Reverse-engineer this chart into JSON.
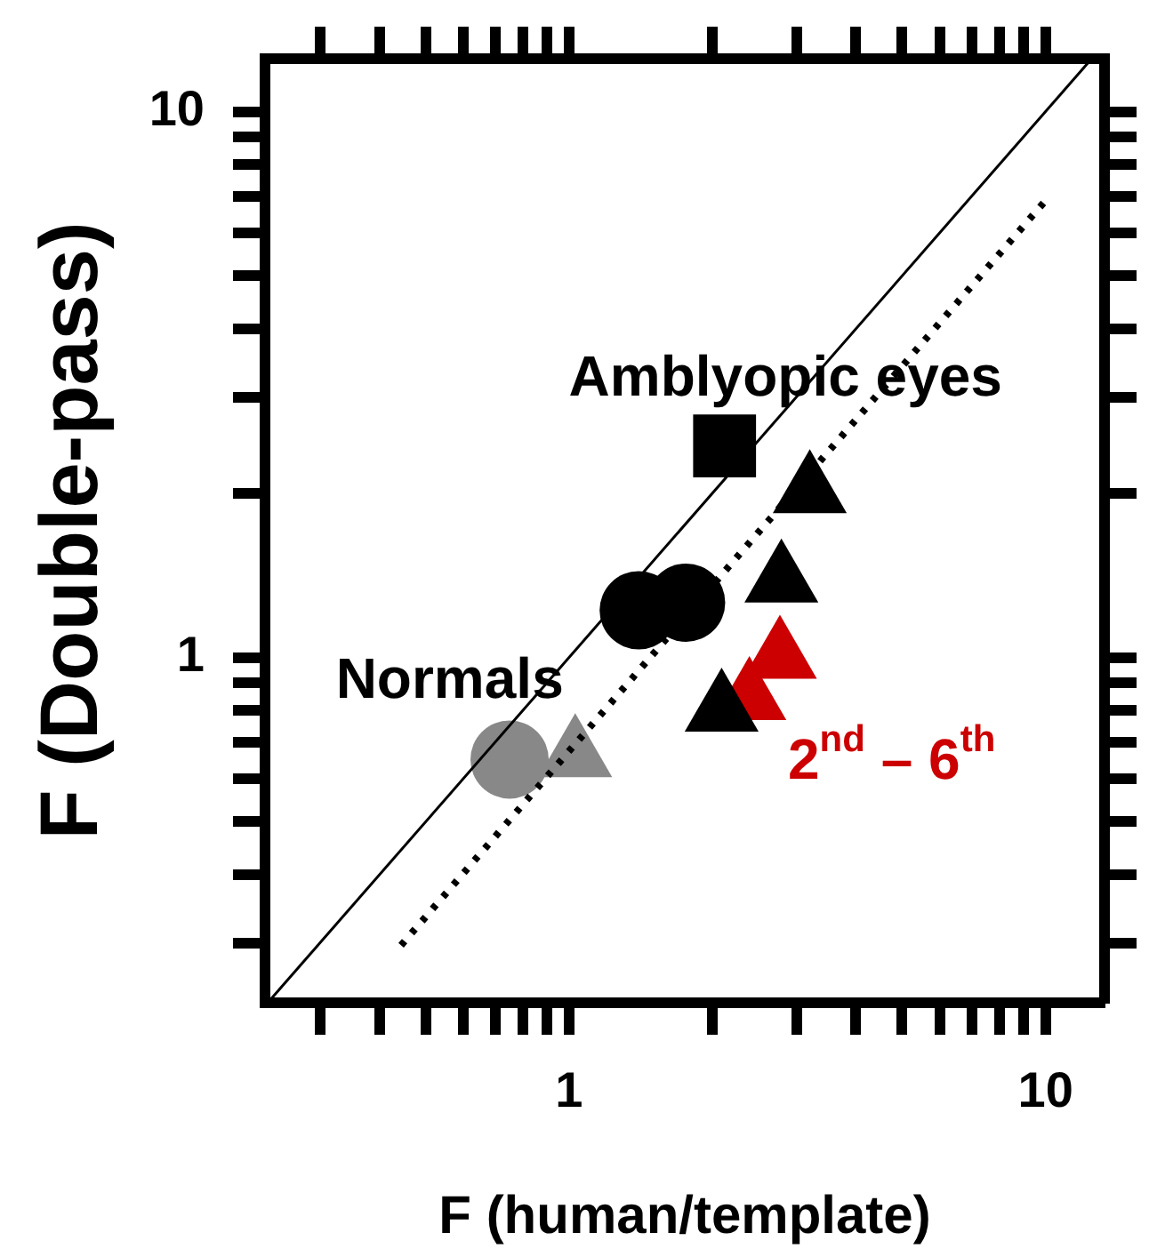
{
  "chart_data": {
    "type": "scatter",
    "xlabel": "F (human/template)",
    "ylabel": "F (Double-pass)",
    "log": "xy",
    "grid": false,
    "legend": false,
    "xlim": [
      0.23,
      13.3
    ],
    "ylim": [
      0.233,
      12.5
    ],
    "xticks": [
      {
        "value": 0.3,
        "label": null
      },
      {
        "value": 0.4,
        "label": null
      },
      {
        "value": 0.5,
        "label": null
      },
      {
        "value": 0.6,
        "label": null
      },
      {
        "value": 0.7,
        "label": null
      },
      {
        "value": 0.8,
        "label": null
      },
      {
        "value": 0.9,
        "label": null
      },
      1,
      {
        "value": 2,
        "label": null
      },
      {
        "value": 3,
        "label": null
      },
      {
        "value": 4,
        "label": null
      },
      {
        "value": 5,
        "label": null
      },
      {
        "value": 6,
        "label": null
      },
      {
        "value": 7,
        "label": null
      },
      {
        "value": 8,
        "label": null
      },
      {
        "value": 9,
        "label": null
      },
      10
    ],
    "yticks": [
      {
        "value": 0.3,
        "label": null
      },
      {
        "value": 0.4,
        "label": null
      },
      {
        "value": 0.5,
        "label": null
      },
      {
        "value": 0.6,
        "label": null
      },
      {
        "value": 0.7,
        "label": null
      },
      {
        "value": 0.8,
        "label": null
      },
      {
        "value": 0.9,
        "label": null
      },
      1,
      {
        "value": 2,
        "label": null
      },
      {
        "value": 3,
        "label": null
      },
      {
        "value": 4,
        "label": null
      },
      {
        "value": 5,
        "label": null
      },
      {
        "value": 6,
        "label": null
      },
      {
        "value": 7,
        "label": null
      },
      {
        "value": 8,
        "label": null
      },
      {
        "value": 9,
        "label": null
      },
      10
    ],
    "series": [
      {
        "type": "line",
        "color": "#000000",
        "line_style": "solid",
        "marker": "none",
        "x": [
          0.233,
          12.5
        ],
        "values": [
          0.233,
          12.5
        ]
      },
      {
        "type": "line",
        "color": "#000000",
        "line_style": "dotted",
        "marker": "none",
        "x": [
          0.444,
          10
        ],
        "values": [
          0.297,
          6.87
        ]
      },
      {
        "color": "#888888",
        "marker": "circle",
        "x": [
          0.75
        ],
        "values": [
          0.65
        ]
      },
      {
        "color": "#888888",
        "marker": "triangle",
        "x": [
          1.03
        ],
        "values": [
          0.66
        ]
      },
      {
        "color": "#000000",
        "marker": "circle",
        "x": [
          1.4
        ],
        "values": [
          1.22
        ]
      },
      {
        "color": "#000000",
        "marker": "circle",
        "x": [
          1.76
        ],
        "values": [
          1.26
        ]
      },
      {
        "color": "#000000",
        "marker": "square",
        "x": [
          2.12
        ],
        "values": [
          2.44
        ]
      },
      {
        "color": "#000000",
        "marker": "triangle",
        "x": [
          3.2
        ],
        "values": [
          2.01
        ]
      },
      {
        "color": "#000000",
        "marker": "triangle",
        "x": [
          2.79
        ],
        "values": [
          1.38
        ]
      },
      {
        "color": "#000000",
        "marker": "triangle",
        "x": [
          2.09
        ],
        "values": [
          0.8
        ]
      },
      {
        "color": "#cc0000",
        "marker": "triangle",
        "x": [
          2.77
        ],
        "values": [
          1.0
        ]
      },
      {
        "color": "#cc0000",
        "marker": "triangle",
        "x": [
          2.39
        ],
        "values": [
          0.84
        ]
      }
    ],
    "annotations": [
      "Amblyopic eyes",
      "Normals",
      {
        "text": "2$^{nd}$ – 6$^{th}$",
        "x": 2.39,
        "y": 0.84
      }
    ]
  }
}
